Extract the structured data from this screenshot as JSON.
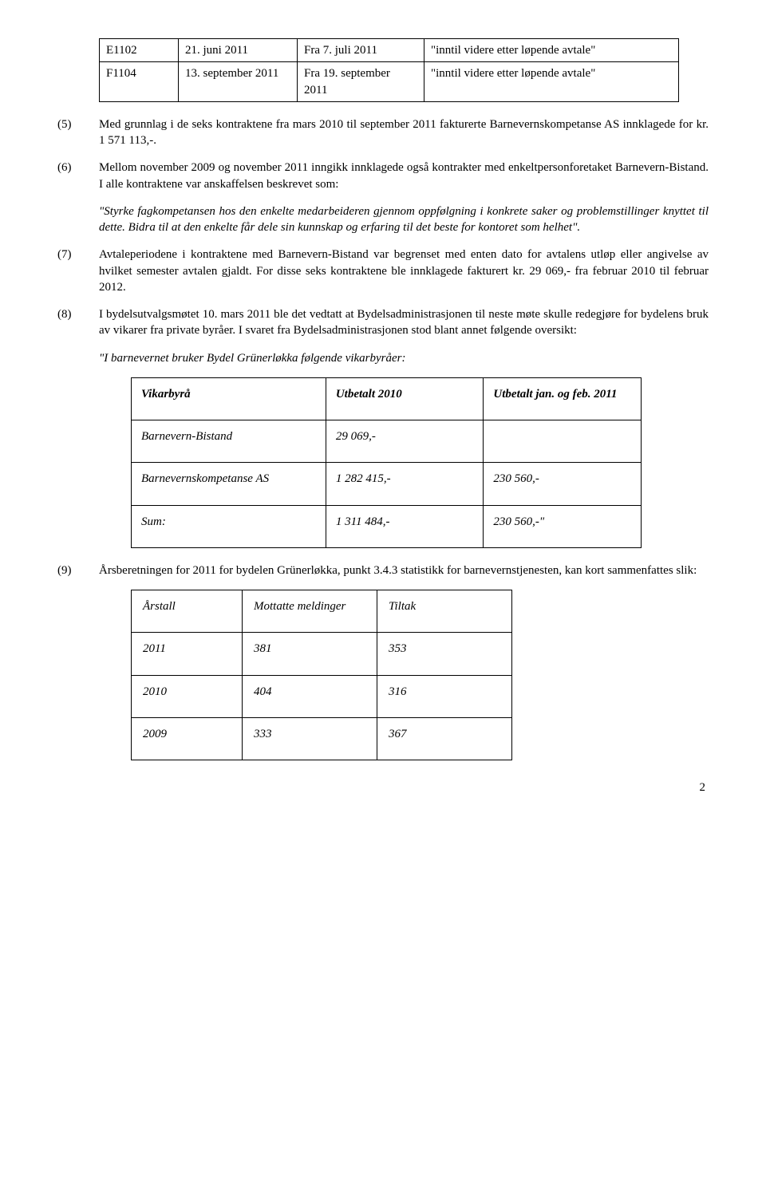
{
  "table1": {
    "rows": [
      {
        "c0": "E1102",
        "c1": "21. juni 2011",
        "c2": "Fra 7. juli 2011",
        "c3": "\"inntil videre etter løpende avtale\""
      },
      {
        "c0": "F1104",
        "c1": "13. september 2011",
        "c2": "Fra 19. september 2011",
        "c3": "\"inntil videre etter løpende avtale\""
      }
    ]
  },
  "p5": {
    "num": "(5)",
    "text": "Med grunnlag i de seks kontraktene fra mars 2010 til september 2011 fakturerte Barnevernskompetanse AS innklagede for kr. 1 571 113,-."
  },
  "p6": {
    "num": "(6)",
    "text": "Mellom november 2009 og november 2011 inngikk innklagede også kontrakter med enkeltpersonforetaket Barnevern-Bistand. I alle kontraktene var anskaffelsen beskrevet som:"
  },
  "q1": "\"Styrke fagkompetansen hos den enkelte medarbeideren gjennom oppfølgning i konkrete saker og problemstillinger knyttet til dette. Bidra til at den enkelte får dele sin kunnskap og erfaring til det beste for kontoret som helhet\".",
  "p7": {
    "num": "(7)",
    "text": "Avtaleperiodene i kontraktene med Barnevern-Bistand var begrenset med enten dato for avtalens utløp eller angivelse av hvilket semester avtalen gjaldt. For disse seks kontraktene ble innklagede fakturert kr. 29 069,- fra februar 2010 til februar 2012."
  },
  "p8": {
    "num": "(8)",
    "text": "I bydelsutvalgsmøtet 10. mars 2011 ble det vedtatt at Bydelsadministrasjonen til neste møte skulle redegjøre for bydelens bruk av vikarer fra private byråer. I svaret fra Bydelsadministrasjonen stod blant annet følgende oversikt:"
  },
  "q2": "\"I barnevernet bruker Bydel Grünerløkka følgende vikarbyråer:",
  "table2": {
    "head": {
      "c0": "Vikarbyrå",
      "c1": "Utbetalt 2010",
      "c2": "Utbetalt jan. og feb. 2011"
    },
    "rows": [
      {
        "c0": "Barnevern-Bistand",
        "c1": "29 069,-",
        "c2": ""
      },
      {
        "c0": "Barnevernskompetanse AS",
        "c1": "1 282 415,-",
        "c2": "230 560,-"
      },
      {
        "c0": "Sum:",
        "c1": "1 311 484,-",
        "c2": "230 560,-\""
      }
    ]
  },
  "p9": {
    "num": "(9)",
    "text": "Årsberetningen for 2011 for bydelen Grünerløkka, punkt 3.4.3 statistikk for barnevernstjenesten, kan kort sammenfattes slik:"
  },
  "table3": {
    "head": {
      "c0": "Årstall",
      "c1": "Mottatte meldinger",
      "c2": "Tiltak"
    },
    "rows": [
      {
        "c0": "2011",
        "c1": "381",
        "c2": "353"
      },
      {
        "c0": "2010",
        "c1": "404",
        "c2": "316"
      },
      {
        "c0": "2009",
        "c1": "333",
        "c2": "367"
      }
    ]
  },
  "pagenum": "2"
}
